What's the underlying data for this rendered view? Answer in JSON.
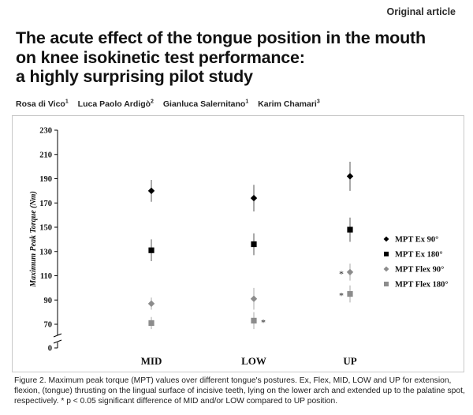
{
  "article_label": "Original article",
  "title_lines": [
    "The acute effect of the tongue position in the mouth",
    "on knee isokinetic test performance:",
    "a highly surprising pilot study"
  ],
  "authors": [
    {
      "name": "Rosa di Vico",
      "sup": "1"
    },
    {
      "name": "Luca Paolo Ardigò",
      "sup": "2"
    },
    {
      "name": "Gianluca Salernitano",
      "sup": "1"
    },
    {
      "name": "Karim Chamari",
      "sup": "3"
    }
  ],
  "caption": "Figure 2. Maximum peak torque (MPT) values over different tongue's postures. Ex, Flex, MID, LOW and UP for extension, flexion, (tongue) thrusting on the lingual surface of incisive teeth, lying on the lower arch and extended up to the palatine spot, respectively. * p < 0.05 significant difference of MID and/or LOW compared to UP position.",
  "chart_data": {
    "type": "scatter",
    "ylabel": "Maximum Peak Torque (Nm)",
    "xlabel": "",
    "ylim": [
      0,
      230
    ],
    "yticks": [
      0,
      70,
      90,
      110,
      130,
      150,
      170,
      190,
      210,
      230
    ],
    "axis_break": true,
    "categories": [
      "MID",
      "LOW",
      "UP"
    ],
    "legend_position": "right",
    "grid": false,
    "series": [
      {
        "name": "MPT Ex 90°",
        "marker": "diamond",
        "color": "#000000",
        "values": [
          180,
          174,
          192
        ],
        "error": [
          9,
          11,
          12
        ],
        "significance": [
          "",
          "",
          ""
        ]
      },
      {
        "name": "MPT Ex 180°",
        "marker": "square",
        "color": "#000000",
        "values": [
          131,
          136,
          148
        ],
        "error": [
          9,
          9,
          10
        ],
        "significance": [
          "",
          "",
          ""
        ]
      },
      {
        "name": "MPT Flex 90°",
        "marker": "diamond",
        "color": "#8c8c8c",
        "values": [
          87,
          91,
          113
        ],
        "error": [
          5,
          9,
          7
        ],
        "significance": [
          "",
          "",
          "*"
        ]
      },
      {
        "name": "MPT Flex 180°",
        "marker": "square",
        "color": "#8c8c8c",
        "values": [
          71,
          73,
          95
        ],
        "error": [
          5,
          7,
          7
        ],
        "significance": [
          "",
          "*",
          "*"
        ]
      }
    ]
  }
}
